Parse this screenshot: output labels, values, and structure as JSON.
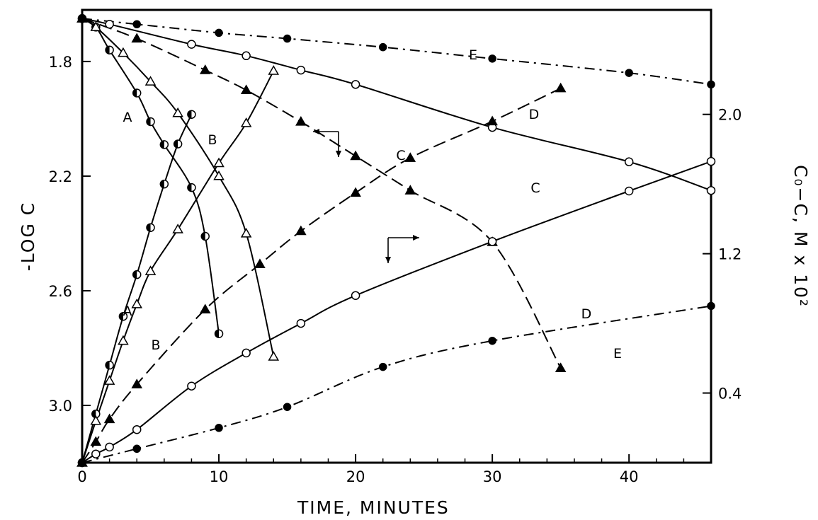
{
  "chart_data": {
    "type": "line",
    "xlabel": "TIME, MINUTES",
    "ylabel_left": "-LOG C",
    "ylabel_right": "C₀−C, M x 10²",
    "xlim": [
      0,
      46
    ],
    "x_ticks": [
      0,
      10,
      20,
      30,
      40
    ],
    "ylim_left": [
      1.62,
      3.2
    ],
    "y_ticks_left": [
      "1.8",
      "2.2",
      "2.6",
      "3.0"
    ],
    "y_left_inverted": true,
    "ylim_right": [
      0,
      2.6
    ],
    "y_ticks_right": [
      "0.4",
      "1.2",
      "2.0"
    ],
    "grid": false,
    "log_series": [
      {
        "name": "A",
        "marker": "half-filled circle",
        "axis": "left",
        "points": [
          [
            0,
            1.65
          ],
          [
            1,
            1.68
          ],
          [
            2,
            1.76
          ],
          [
            4,
            1.91
          ],
          [
            5,
            2.01
          ],
          [
            6,
            2.09
          ],
          [
            8,
            2.24
          ],
          [
            9,
            2.41
          ],
          [
            10,
            2.75
          ]
        ]
      },
      {
        "name": "B",
        "marker": "open triangle",
        "axis": "left",
        "points": [
          [
            0,
            1.65
          ],
          [
            1,
            1.68
          ],
          [
            3,
            1.77
          ],
          [
            5,
            1.87
          ],
          [
            7,
            1.98
          ],
          [
            10,
            2.2
          ],
          [
            12,
            2.4
          ],
          [
            14,
            2.83
          ]
        ]
      },
      {
        "name": "C",
        "marker": "filled triangle",
        "axis": "left",
        "points": [
          [
            0,
            1.65
          ],
          [
            4,
            1.72
          ],
          [
            9,
            1.83
          ],
          [
            12,
            1.9
          ],
          [
            16,
            2.01
          ],
          [
            20,
            2.13
          ],
          [
            24,
            2.25
          ],
          [
            30,
            2.43
          ],
          [
            35,
            2.87
          ]
        ]
      },
      {
        "name": "D",
        "marker": "open circle",
        "axis": "left",
        "points": [
          [
            0,
            1.65
          ],
          [
            2,
            1.67
          ],
          [
            8,
            1.74
          ],
          [
            12,
            1.78
          ],
          [
            16,
            1.83
          ],
          [
            20,
            1.88
          ],
          [
            30,
            2.03
          ],
          [
            40,
            2.15
          ],
          [
            46,
            2.25
          ]
        ]
      },
      {
        "name": "E",
        "marker": "filled circle",
        "axis": "left",
        "points": [
          [
            0,
            1.65
          ],
          [
            4,
            1.67
          ],
          [
            10,
            1.7
          ],
          [
            15,
            1.72
          ],
          [
            22,
            1.75
          ],
          [
            30,
            1.79
          ],
          [
            40,
            1.84
          ],
          [
            46,
            1.88
          ]
        ]
      }
    ],
    "conv_series": [
      {
        "name": "A",
        "marker": "half-filled circle",
        "axis": "right",
        "points": [
          [
            0,
            0
          ],
          [
            1,
            0.28
          ],
          [
            2,
            0.56
          ],
          [
            3,
            0.84
          ],
          [
            4,
            1.08
          ],
          [
            5,
            1.35
          ],
          [
            6,
            1.6
          ],
          [
            7,
            1.83
          ],
          [
            8,
            2.0
          ]
        ]
      },
      {
        "name": "B",
        "marker": "open triangle",
        "axis": "right",
        "points": [
          [
            0,
            0
          ],
          [
            1,
            0.24
          ],
          [
            2,
            0.47
          ],
          [
            3,
            0.7
          ],
          [
            4,
            0.91
          ],
          [
            5,
            1.1
          ],
          [
            7,
            1.34
          ],
          [
            10,
            1.72
          ],
          [
            12,
            1.95
          ],
          [
            14,
            2.25
          ]
        ]
      },
      {
        "name": "C",
        "marker": "filled triangle",
        "axis": "right",
        "points": [
          [
            0,
            0
          ],
          [
            1,
            0.12
          ],
          [
            2,
            0.25
          ],
          [
            4,
            0.45
          ],
          [
            9,
            0.88
          ],
          [
            13,
            1.14
          ],
          [
            16,
            1.33
          ],
          [
            20,
            1.55
          ],
          [
            24,
            1.75
          ],
          [
            30,
            1.96
          ],
          [
            35,
            2.15
          ]
        ]
      },
      {
        "name": "D",
        "marker": "open circle",
        "axis": "right",
        "points": [
          [
            0,
            0
          ],
          [
            1,
            0.05
          ],
          [
            2,
            0.09
          ],
          [
            4,
            0.19
          ],
          [
            8,
            0.44
          ],
          [
            12,
            0.63
          ],
          [
            16,
            0.8
          ],
          [
            20,
            0.96
          ],
          [
            30,
            1.27
          ],
          [
            40,
            1.56
          ],
          [
            46,
            1.73
          ]
        ]
      },
      {
        "name": "E",
        "marker": "filled circle",
        "axis": "right",
        "points": [
          [
            0,
            0
          ],
          [
            4,
            0.08
          ],
          [
            10,
            0.2
          ],
          [
            15,
            0.32
          ],
          [
            22,
            0.55
          ],
          [
            30,
            0.7
          ],
          [
            46,
            0.9
          ]
        ]
      }
    ],
    "curve_labels_upper": [
      "A",
      "B",
      "C",
      "D",
      "E"
    ],
    "curve_labels_lower": [
      "A",
      "B",
      "C",
      "D",
      "E"
    ]
  }
}
